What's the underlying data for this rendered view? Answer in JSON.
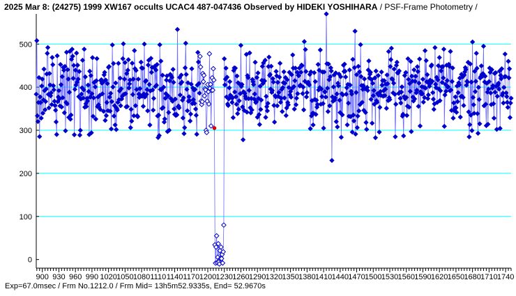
{
  "header": {
    "title_bold": "2025 Mar 8: (24275) 1999 XW167 occults UCAC4 487-047436 Observed by HIDEKI YOSHIHARA",
    "title_suffix": " / PSF-Frame Photometry /"
  },
  "footer": {
    "text": "Exp=67.0msec / Frm No.1212.0 / Frm Mid= 13h5m52.9335s,  End= 52.9670s"
  },
  "colors": {
    "series": "#0000cc",
    "line": "#6a6aff",
    "grid": "#00ffff",
    "event_marker": "#dd0000",
    "open_marker_edge": "#0000cc"
  },
  "chart_data": {
    "type": "line",
    "title": "2025 Mar 8: (24275) 1999 XW167 occults UCAC4 487-047436 Observed by HIDEKI YOSHIHARA / PSF-Frame Photometry /",
    "xlabel": "",
    "ylabel": "",
    "xlim": [
      889,
      1750
    ],
    "ylim": [
      -20,
      570
    ],
    "y_ticks": [
      0,
      100,
      200,
      300,
      400,
      500
    ],
    "x_ticks": [
      900,
      930,
      960,
      990,
      1020,
      1050,
      1080,
      1110,
      1140,
      1170,
      1200,
      1230,
      1260,
      1290,
      1320,
      1350,
      1380,
      1410,
      1440,
      1470,
      1500,
      1530,
      1560,
      1590,
      1620,
      1650,
      1680,
      1710,
      1740
    ],
    "x_tick_labels": [
      "900",
      "930",
      "960",
      "990",
      "1020",
      "1050",
      "1080",
      "1110",
      "1140",
      "1170",
      "1200",
      "1230",
      "1260",
      "1290",
      "1320",
      "1350",
      "1380",
      "1410",
      "1440",
      "1470",
      "1500",
      "1530",
      "1560",
      "1590",
      "1620",
      "1650",
      "1680",
      "1710",
      "1740"
    ],
    "grid": "horizontal",
    "frame_start": 889,
    "frame_end": 1750,
    "event_frame": 1212,
    "event_value": 305,
    "occultation_start": 1213,
    "occultation_end": 1229,
    "baseline_mean": 395,
    "baseline_noise": 45,
    "occulted_mean": 15,
    "occulted_noise": 18,
    "outliers": [
      {
        "x": 890,
        "y": 508
      },
      {
        "x": 910,
        "y": 492
      },
      {
        "x": 948,
        "y": 330
      },
      {
        "x": 985,
        "y": 290
      },
      {
        "x": 1025,
        "y": 303
      },
      {
        "x": 1027,
        "y": 498
      },
      {
        "x": 1085,
        "y": 500
      },
      {
        "x": 1110,
        "y": 283
      },
      {
        "x": 1130,
        "y": 300
      },
      {
        "x": 1145,
        "y": 534
      },
      {
        "x": 1160,
        "y": 502
      },
      {
        "x": 1264,
        "y": 278
      },
      {
        "x": 1415,
        "y": 570
      },
      {
        "x": 1425,
        "y": 230
      },
      {
        "x": 1410,
        "y": 305
      },
      {
        "x": 1467,
        "y": 530
      },
      {
        "x": 1540,
        "y": 285
      },
      {
        "x": 1555,
        "y": 287
      },
      {
        "x": 1640,
        "y": 483
      },
      {
        "x": 1680,
        "y": 505
      },
      {
        "x": 1700,
        "y": 495
      },
      {
        "x": 1745,
        "y": 460
      }
    ],
    "open_marker_ranges": [
      [
        1186,
        1211
      ],
      [
        1213,
        1229
      ]
    ]
  }
}
